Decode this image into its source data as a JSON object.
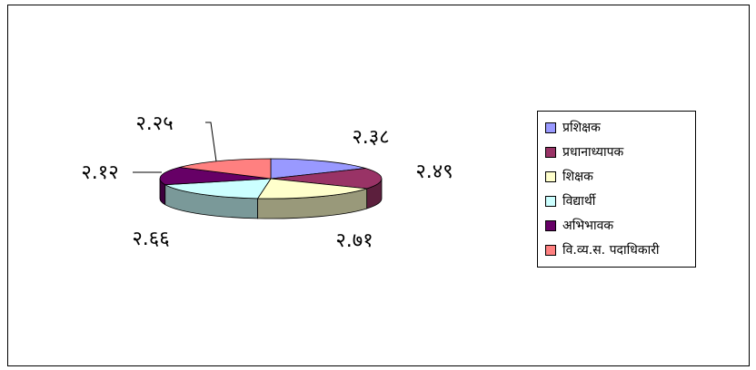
{
  "chart_data": {
    "type": "pie",
    "style": "3d-exploded",
    "title": "",
    "legend": "right",
    "categories": [
      "प्रशिक्षक",
      "प्रधानाध्यापक",
      "शिक्षक",
      "विद्यार्थी",
      "अभिभावक",
      "वि.व्य.स. पदाधिकारी"
    ],
    "values": [
      2.38,
      2.49,
      2.71,
      2.66,
      2.12,
      2.25
    ],
    "value_labels": [
      "२.३८",
      "२.४९",
      "२.७१",
      "२.६६",
      "२.१२",
      "२.२५"
    ],
    "colors": [
      "#9999ff",
      "#993366",
      "#ffffcc",
      "#ccffff",
      "#660066",
      "#ff8080"
    ]
  }
}
